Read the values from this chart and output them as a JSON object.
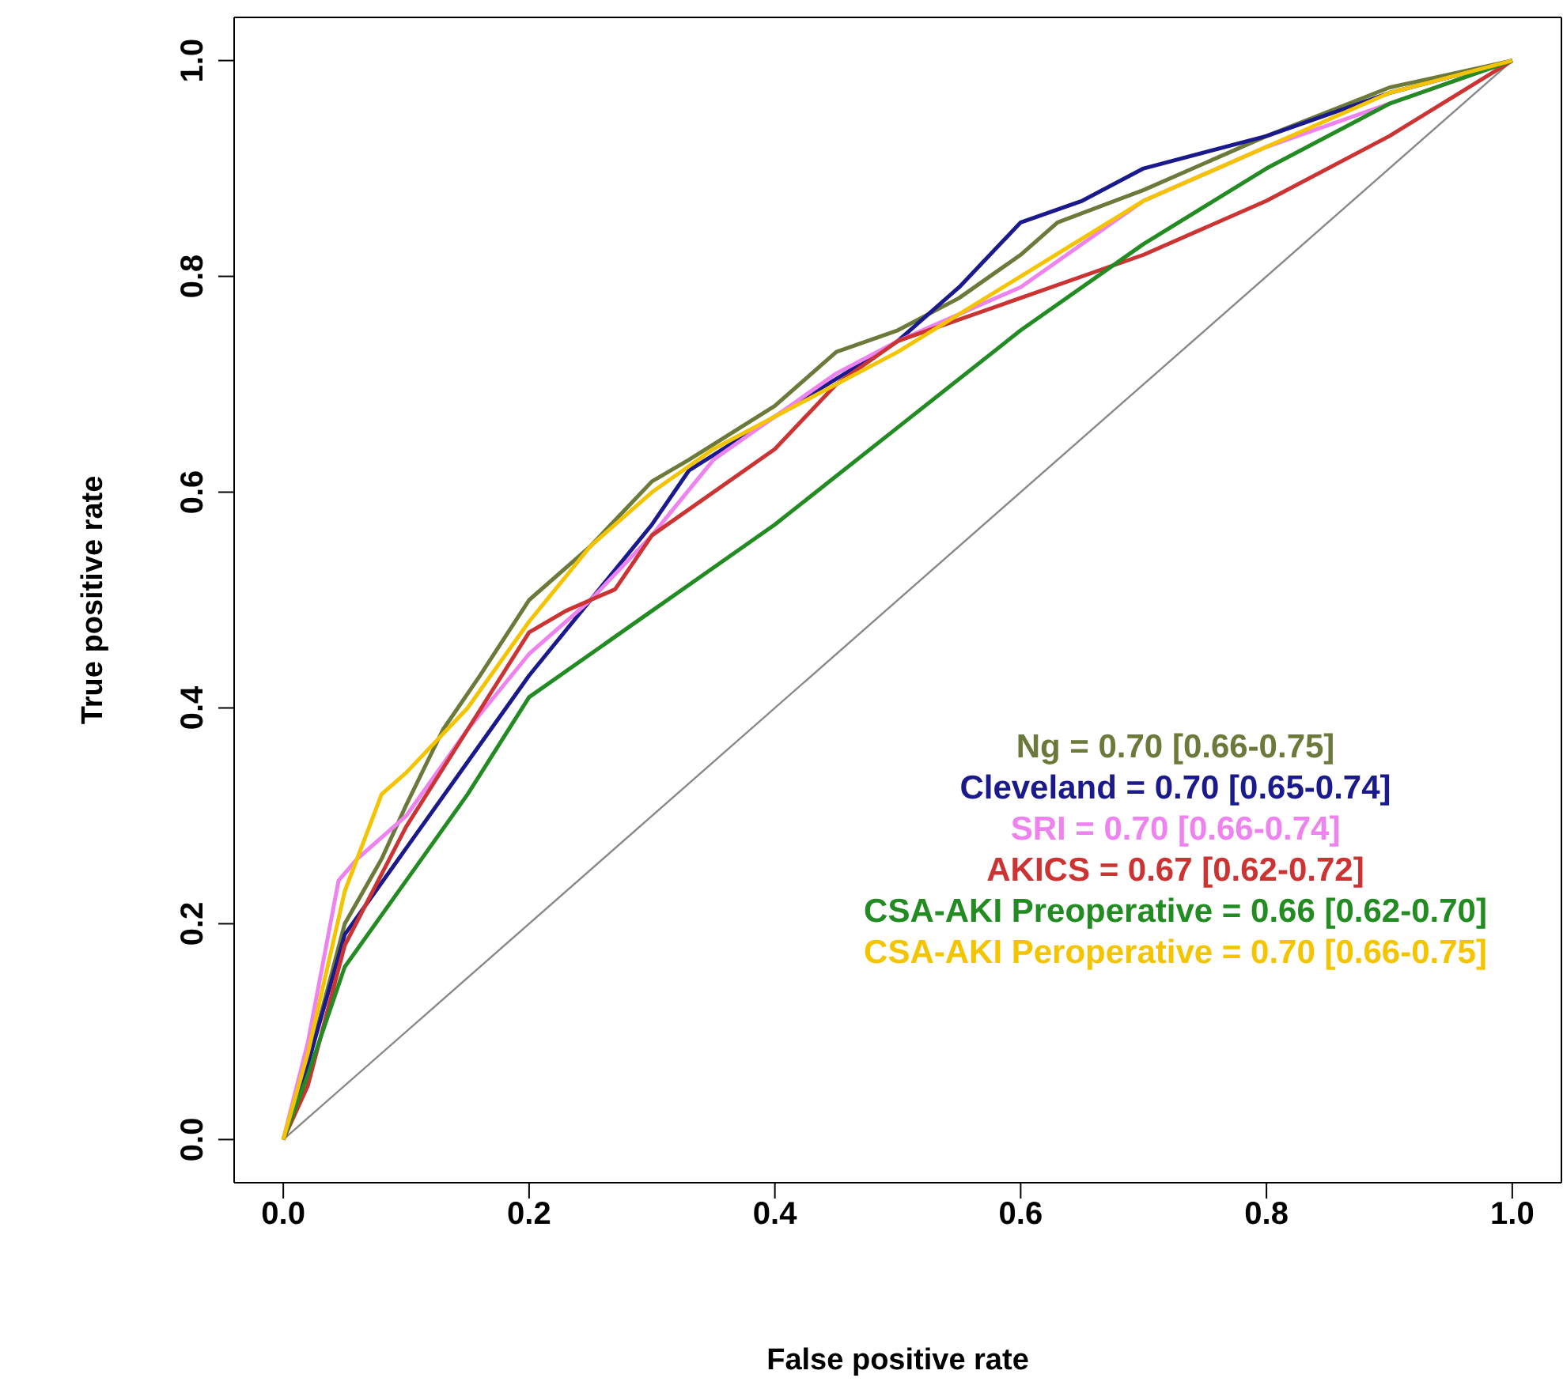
{
  "chart_data": {
    "type": "line",
    "xlabel": "False positive rate",
    "ylabel": "True positive rate",
    "xlim": [
      -0.04,
      1.04
    ],
    "ylim": [
      -0.04,
      1.04
    ],
    "xticks": [
      {
        "value": 0,
        "label": "0.0"
      },
      0.2,
      0.4,
      0.6,
      0.8,
      {
        "value": 1,
        "label": "1.0"
      }
    ],
    "yticks": [
      {
        "value": 0,
        "label": "0.0"
      },
      0.2,
      0.4,
      0.6,
      0.8,
      {
        "value": 1,
        "label": "1.0"
      }
    ],
    "grid": false,
    "legend": "bottom right",
    "marker": "none",
    "line_style": "solid",
    "series": [
      {
        "color": "#888888",
        "x": [
          0,
          1
        ],
        "values": [
          0,
          1
        ]
      },
      {
        "name": "Ng = 0.70 [0.66-0.75]",
        "color": "#6b7a3a",
        "x": [
          0,
          0.02,
          0.05,
          0.08,
          0.1,
          0.13,
          0.16,
          0.2,
          0.25,
          0.3,
          0.33,
          0.4,
          0.45,
          0.5,
          0.55,
          0.6,
          0.63,
          0.7,
          0.8,
          0.9,
          1
        ],
        "values": [
          0,
          0.07,
          0.2,
          0.26,
          0.31,
          0.38,
          0.43,
          0.5,
          0.55,
          0.61,
          0.63,
          0.68,
          0.73,
          0.75,
          0.78,
          0.82,
          0.85,
          0.88,
          0.93,
          0.975,
          1
        ]
      },
      {
        "name": "Cleveland = 0.70 [0.65-0.74]",
        "color": "#1a1a8c",
        "x": [
          0,
          0.02,
          0.05,
          0.1,
          0.15,
          0.2,
          0.25,
          0.3,
          0.33,
          0.4,
          0.5,
          0.55,
          0.6,
          0.65,
          0.7,
          0.8,
          0.9,
          1
        ],
        "values": [
          0,
          0.07,
          0.19,
          0.27,
          0.35,
          0.43,
          0.5,
          0.57,
          0.62,
          0.67,
          0.74,
          0.79,
          0.85,
          0.87,
          0.9,
          0.93,
          0.97,
          1
        ]
      },
      {
        "name": "SRI = 0.70 [0.66-0.74]",
        "color": "#ee82ee",
        "x": [
          0,
          0.02,
          0.045,
          0.06,
          0.1,
          0.15,
          0.2,
          0.25,
          0.3,
          0.35,
          0.4,
          0.45,
          0.5,
          0.6,
          0.7,
          0.8,
          0.9,
          1
        ],
        "values": [
          0,
          0.09,
          0.24,
          0.26,
          0.3,
          0.38,
          0.45,
          0.5,
          0.56,
          0.63,
          0.67,
          0.71,
          0.74,
          0.79,
          0.87,
          0.92,
          0.96,
          1
        ]
      },
      {
        "name": "AKICS = 0.67 [0.62-0.72]",
        "color": "#cc3333",
        "x": [
          0,
          0.02,
          0.05,
          0.1,
          0.15,
          0.2,
          0.23,
          0.27,
          0.3,
          0.4,
          0.45,
          0.5,
          0.6,
          0.7,
          0.8,
          0.9,
          1
        ],
        "values": [
          0,
          0.05,
          0.18,
          0.29,
          0.38,
          0.47,
          0.49,
          0.51,
          0.56,
          0.64,
          0.7,
          0.74,
          0.78,
          0.82,
          0.87,
          0.93,
          1
        ]
      },
      {
        "name": "CSA-AKI Preoperative = 0.66 [0.62-0.70]",
        "color": "#228b22",
        "x": [
          0,
          0.02,
          0.05,
          0.1,
          0.15,
          0.2,
          0.3,
          0.4,
          0.5,
          0.6,
          0.7,
          0.8,
          0.9,
          1
        ],
        "values": [
          0,
          0.06,
          0.16,
          0.24,
          0.32,
          0.41,
          0.49,
          0.57,
          0.66,
          0.75,
          0.83,
          0.9,
          0.96,
          1
        ]
      },
      {
        "name": "CSA-AKI Peroperative = 0.70 [0.66-0.75]",
        "color": "#f5c400",
        "x": [
          0,
          0.02,
          0.05,
          0.08,
          0.1,
          0.15,
          0.2,
          0.25,
          0.3,
          0.35,
          0.4,
          0.5,
          0.6,
          0.7,
          0.8,
          0.9,
          1
        ],
        "values": [
          0,
          0.08,
          0.23,
          0.32,
          0.34,
          0.4,
          0.48,
          0.55,
          0.6,
          0.64,
          0.67,
          0.73,
          0.8,
          0.87,
          0.92,
          0.97,
          1
        ]
      }
    ]
  }
}
